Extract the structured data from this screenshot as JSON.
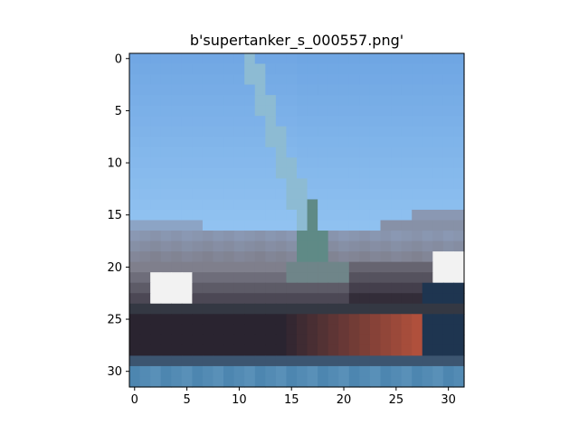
{
  "chart_data": {
    "type": "heatmap",
    "title": "b'supertanker_s_000557.png'",
    "xlabel": "",
    "ylabel": "",
    "xlim": [
      -0.5,
      31.5
    ],
    "ylim": [
      31.5,
      -0.5
    ],
    "x_ticks": [
      0,
      5,
      10,
      15,
      20,
      25,
      30
    ],
    "y_ticks": [
      0,
      5,
      10,
      15,
      20,
      25,
      30
    ],
    "x_tick_labels": [
      "0",
      "5",
      "10",
      "15",
      "20",
      "25",
      "30"
    ],
    "y_tick_labels": [
      "0",
      "5",
      "10",
      "15",
      "20",
      "25",
      "30"
    ],
    "grid": false,
    "image_rows": 32,
    "image_cols": 32,
    "palette": {
      "sky_top": "#6fa6e3",
      "sky_bottom": "#8fc1f0",
      "crane": "#8cb9c9",
      "crane_dark": "#5f8a86",
      "horizon": "#8a98b3",
      "deck": "#7f7f8c",
      "highlight": "#f2f2f2",
      "hull_dark": "#2a2430",
      "hull_red": "#b0503c",
      "hull_blue": "#1e3550",
      "water": "#4d86b0"
    }
  }
}
